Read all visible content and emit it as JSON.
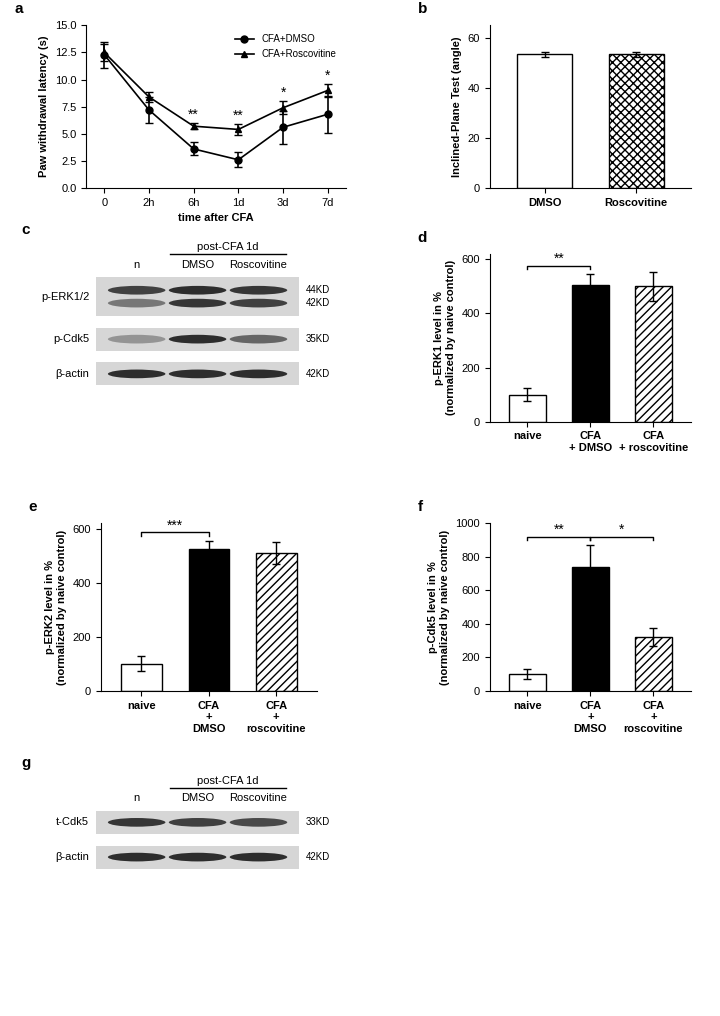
{
  "chart_data": [
    {
      "panel": "a",
      "type": "line",
      "x_label": "time after CFA",
      "y_label": "Paw withdrawal latency (s)",
      "categories": [
        "0",
        "2h",
        "6h",
        "1d",
        "3d",
        "7d"
      ],
      "ylim": [
        0,
        15
      ],
      "yticks": [
        {
          "value": 0,
          "label": "0.0"
        },
        {
          "value": 2.5,
          "label": "2.5"
        },
        {
          "value": 5,
          "label": "5.0"
        },
        {
          "value": 7.5,
          "label": "7.5"
        },
        {
          "value": 10,
          "label": "10.0"
        },
        {
          "value": 12.5,
          "label": "12.5"
        },
        {
          "value": 15,
          "label": "15.0"
        }
      ],
      "legend": "upper right",
      "series": [
        {
          "name": "CFA+DMSO",
          "color": "#000000",
          "marker": "o",
          "values": [
            12.3,
            7.2,
            3.6,
            2.6,
            5.6,
            6.8
          ],
          "errors": [
            1.2,
            1.2,
            0.6,
            0.7,
            1.5,
            1.7
          ]
        },
        {
          "name": "CFA+Roscovitine",
          "color": "#000000",
          "marker": "^",
          "values": [
            12.5,
            8.4,
            5.7,
            5.4,
            7.4,
            9.0
          ],
          "errors": [
            0.8,
            0.5,
            0.3,
            0.5,
            0.6,
            0.6
          ]
        }
      ],
      "annotations": [
        {
          "x": "6h",
          "text": "**"
        },
        {
          "x": "1d",
          "text": "**"
        },
        {
          "x": "3d",
          "text": "*"
        },
        {
          "x": "7d",
          "text": "*"
        }
      ]
    },
    {
      "panel": "b",
      "type": "bar",
      "y_label": "Inclined-Plane Test (angle)",
      "categories": [
        "DMSO",
        "Roscovitine"
      ],
      "values": [
        53.5,
        53.5
      ],
      "errors": [
        1.0,
        1.0
      ],
      "colors": [
        "#ffffff",
        "#ffffff"
      ],
      "ylim": [
        0,
        65
      ],
      "yticks": [
        0,
        20,
        40,
        60
      ]
    },
    {
      "panel": "d",
      "type": "bar",
      "y_label": "p-ERK1 level in %\n(normalized by naive control)",
      "categories": [
        "naive",
        "CFA\n+ DMSO",
        "CFA\n+ roscovitine"
      ],
      "values": [
        100,
        505,
        500
      ],
      "errors": [
        25,
        40,
        55
      ],
      "colors": [
        "#ffffff",
        "#000000",
        "#ffffff"
      ],
      "ylim": [
        0,
        620
      ],
      "yticks": [
        0,
        200,
        400,
        600
      ],
      "significance": [
        {
          "between": [
            "naive",
            "CFA\n+ DMSO"
          ],
          "text": "**"
        }
      ]
    },
    {
      "panel": "e",
      "type": "bar",
      "y_label": "p-ERK2 level in %\n(normalized by naive control)",
      "categories": [
        "naive",
        "CFA\n+\nDMSO",
        "CFA\n+\nroscovitine"
      ],
      "values": [
        100,
        525,
        510
      ],
      "errors": [
        28,
        30,
        40
      ],
      "colors": [
        "#ffffff",
        "#000000",
        "#ffffff"
      ],
      "ylim": [
        0,
        620
      ],
      "yticks": [
        0,
        200,
        400,
        600
      ],
      "significance": [
        {
          "between": [
            "naive",
            "CFA\n+\nDMSO"
          ],
          "text": "***"
        }
      ]
    },
    {
      "panel": "f",
      "type": "bar",
      "y_label": "p-Cdk5 level in %\n(normalized by naive control)",
      "categories": [
        "naive",
        "CFA\n+\nDMSO",
        "CFA\n+\nroscovitine"
      ],
      "values": [
        100,
        740,
        320
      ],
      "errors": [
        30,
        130,
        55
      ],
      "colors": [
        "#ffffff",
        "#000000",
        "#ffffff"
      ],
      "ylim": [
        0,
        1000
      ],
      "yticks": [
        0,
        200,
        400,
        600,
        800,
        1000
      ],
      "significance": [
        {
          "between": [
            "naive",
            "CFA\n+\nDMSO"
          ],
          "text": "**"
        },
        {
          "between": [
            "CFA\n+\nDMSO",
            "CFA\n+\nroscovitine"
          ],
          "text": "*"
        }
      ]
    }
  ],
  "blots": [
    {
      "panel": "c",
      "header": {
        "text": "post-CFA 1d",
        "lanes": [
          "DMSO",
          "Roscovitine"
        ]
      },
      "lanes": [
        "n",
        "DMSO",
        "Roscovitine"
      ],
      "rows": [
        {
          "label": "p-ERK1/2",
          "sizes": [
            "44KD",
            "42KD"
          ]
        },
        {
          "label": "p-Cdk5",
          "sizes": [
            "35KD"
          ]
        },
        {
          "label": "β-actin",
          "sizes": [
            "42KD"
          ]
        }
      ]
    },
    {
      "panel": "g",
      "header": {
        "text": "post-CFA 1d",
        "lanes": [
          "DMSO",
          "Roscovitine"
        ]
      },
      "lanes": [
        "n",
        "DMSO",
        "Roscovitine"
      ],
      "rows": [
        {
          "label": "t-Cdk5",
          "sizes": [
            "33KD"
          ]
        },
        {
          "label": "β-actin",
          "sizes": [
            "42KD"
          ]
        }
      ]
    }
  ]
}
